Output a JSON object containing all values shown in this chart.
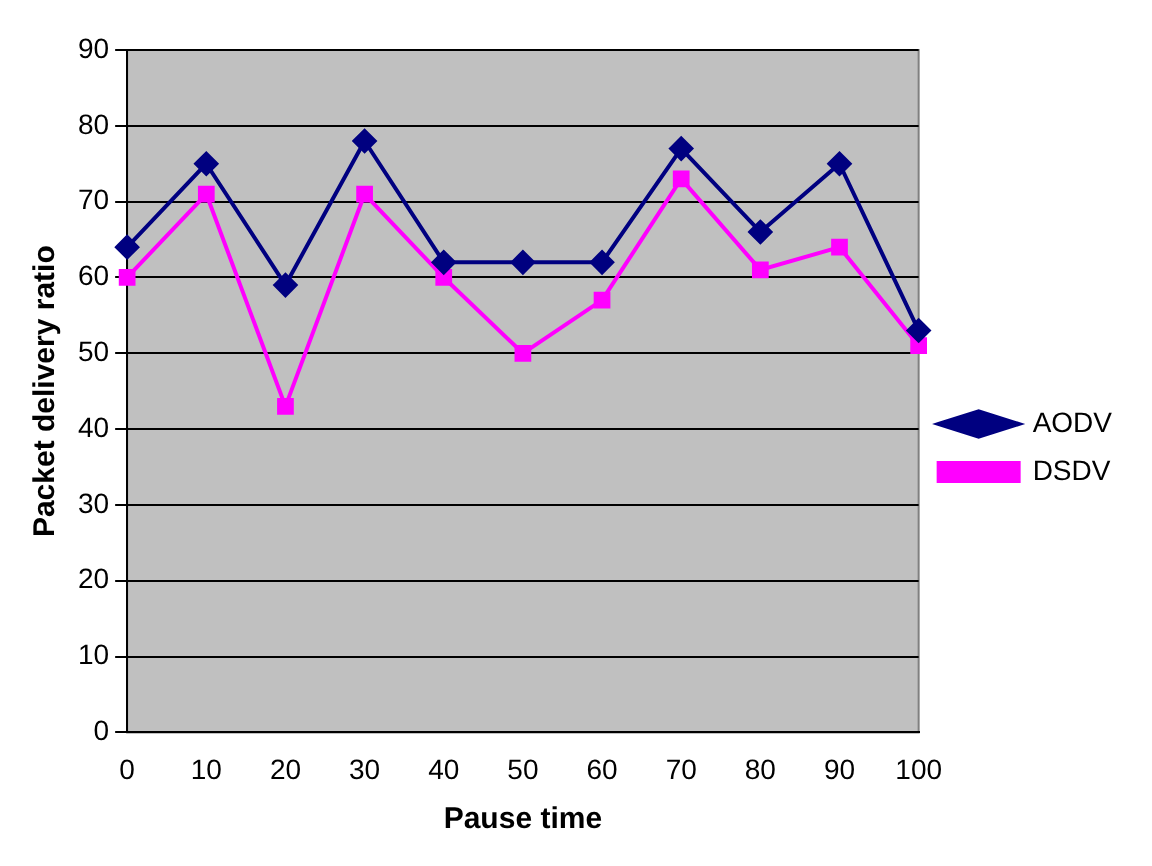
{
  "chart_data": {
    "type": "line",
    "xlabel": "Pause time",
    "ylabel": "Packet delivery ratio",
    "categories": [
      "0",
      "10",
      "20",
      "30",
      "40",
      "50",
      "60",
      "70",
      "80",
      "90",
      "100"
    ],
    "series": [
      {
        "name": "AODV",
        "color": "#000080",
        "marker": "diamond",
        "values": [
          64,
          75,
          59,
          78,
          62,
          62,
          62,
          77,
          66,
          75,
          53
        ]
      },
      {
        "name": "DSDV",
        "color": "#ff00ff",
        "marker": "square",
        "values": [
          60,
          71,
          43,
          71,
          60,
          50,
          57,
          73,
          61,
          64,
          51
        ]
      }
    ],
    "ylim": [
      0,
      90
    ],
    "yticks": [
      0,
      10,
      20,
      30,
      40,
      50,
      60,
      70,
      80,
      90
    ],
    "grid": "y",
    "legend": "right"
  }
}
